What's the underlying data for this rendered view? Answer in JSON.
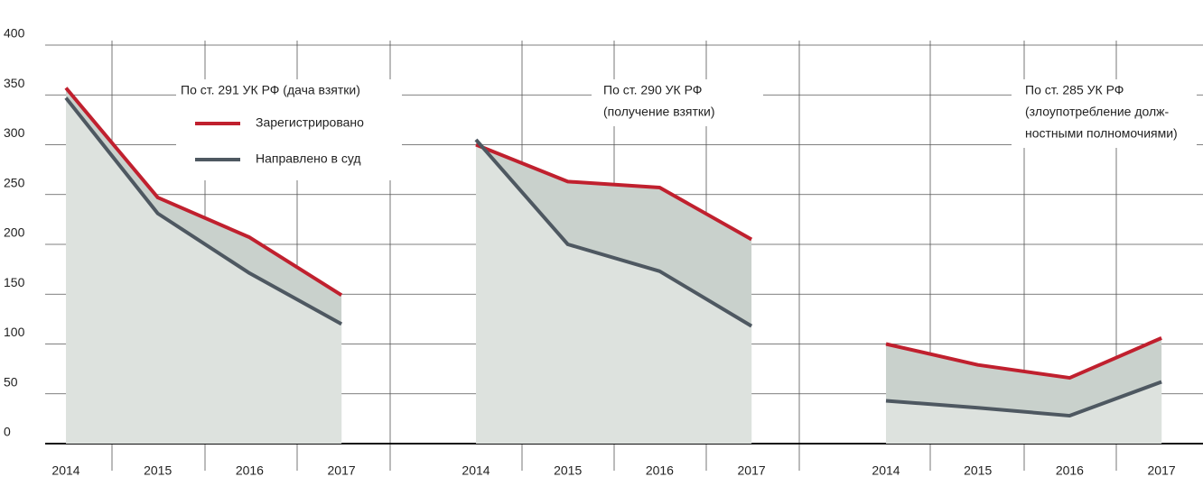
{
  "chart_data": [
    {
      "type": "line",
      "title": [
        "По ст. 291 УК РФ (дача взятки)"
      ],
      "categories": [
        "2014",
        "2015",
        "2016",
        "2017"
      ],
      "series": [
        {
          "name": "Зарегистрировано",
          "color": "#c0202e",
          "values": [
            357,
            247,
            207,
            149
          ]
        },
        {
          "name": "Направлено в суд",
          "color": "#4e5861",
          "values": [
            347,
            231,
            171,
            120
          ]
        }
      ],
      "ylim": [
        0,
        400
      ],
      "yticks": [
        0,
        50,
        100,
        150,
        200,
        250,
        300,
        350,
        400
      ]
    },
    {
      "type": "line",
      "title": [
        "По ст. 290 УК РФ",
        "(получение взятки)"
      ],
      "categories": [
        "2014",
        "2015",
        "2016",
        "2017"
      ],
      "series": [
        {
          "color": "#c0202e",
          "values": [
            300,
            263,
            257,
            205
          ]
        },
        {
          "color": "#4e5861",
          "values": [
            305,
            200,
            173,
            118
          ]
        }
      ],
      "ylim": [
        0,
        400
      ],
      "yticks": [
        0,
        50,
        100,
        150,
        200,
        250,
        300,
        350,
        400
      ]
    },
    {
      "type": "line",
      "title": [
        "По ст. 285 УК РФ",
        "(злоупотребление долж-",
        "ностными полномочиями)"
      ],
      "categories": [
        "2014",
        "2015",
        "2016",
        "2017"
      ],
      "series": [
        {
          "color": "#c0202e",
          "values": [
            100,
            79,
            66,
            106
          ]
        },
        {
          "color": "#4e5861",
          "values": [
            43,
            36,
            28,
            62
          ]
        }
      ],
      "ylim": [
        0,
        400
      ],
      "yticks": [
        0,
        50,
        100,
        150,
        200,
        250,
        300,
        350,
        400
      ]
    }
  ]
}
